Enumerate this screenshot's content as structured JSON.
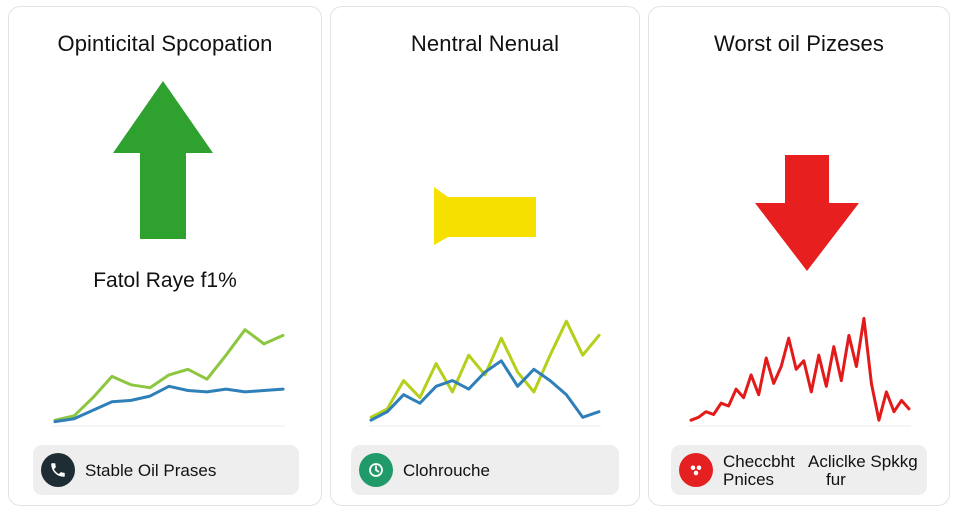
{
  "panels": [
    {
      "title": "Opinticital Spcopation",
      "sub_label": "Fatol Raye f1%",
      "arrow_color": "#2ea12e",
      "arrow_direction": "up",
      "chart_data": {
        "type": "line",
        "series": [
          {
            "color": "#8dc63f",
            "values": [
              2,
              5,
              18,
              33,
              27,
              25,
              34,
              38,
              31,
              48,
              66,
              56,
              62
            ]
          },
          {
            "color": "#2f7fb8",
            "values": [
              1,
              3,
              9,
              15,
              16,
              19,
              26,
              23,
              22,
              24,
              22,
              23,
              24
            ]
          }
        ]
      },
      "footer": {
        "icon": "phone-icon",
        "icon_color": "#1e2d33",
        "text": "Stable Oil Prases"
      }
    },
    {
      "title": "Nentral  Nenual",
      "sub_label": "",
      "arrow_color": "#f5e000",
      "arrow_direction": "flat",
      "chart_data": {
        "type": "line",
        "series": [
          {
            "color": "#b5cf1a",
            "values": [
              4,
              10,
              30,
              18,
              42,
              22,
              48,
              34,
              60,
              36,
              22,
              48,
              72,
              48,
              62
            ]
          },
          {
            "color": "#2f7fb8",
            "values": [
              2,
              8,
              20,
              14,
              26,
              30,
              24,
              36,
              44,
              26,
              38,
              30,
              20,
              4,
              8
            ]
          }
        ]
      },
      "footer": {
        "icon": "clock-phone-icon",
        "icon_color": "#1f9a68",
        "text": "Clohrouche"
      }
    },
    {
      "title": "Worst oil Pizeses",
      "sub_label": "",
      "arrow_color": "#e81f1f",
      "arrow_direction": "down",
      "chart_data": {
        "type": "line",
        "series": [
          {
            "color": "#e21a1a",
            "values": [
              2,
              4,
              8,
              6,
              14,
              12,
              24,
              18,
              34,
              20,
              46,
              28,
              40,
              60,
              38,
              44,
              22,
              48,
              26,
              54,
              30,
              62,
              40,
              74,
              28,
              2,
              22,
              8,
              16,
              10
            ]
          }
        ]
      },
      "footer": {
        "icon": "bug-icon",
        "icon_color": "#e52020",
        "text_line1": "Checcbht   Acliclke Spkkg",
        "text_line2": "Pnices           fur"
      }
    }
  ]
}
